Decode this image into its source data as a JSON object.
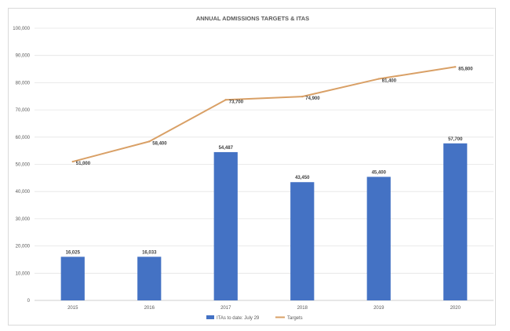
{
  "chart_data": {
    "type": "bar",
    "title": "ANNUAL ADMISSIONS TARGETS & ITAS",
    "categories": [
      "2015",
      "2016",
      "2017",
      "2018",
      "2019",
      "2020"
    ],
    "series": [
      {
        "name": "ITAs to date: July 29",
        "type": "bar",
        "color": "#4472C4",
        "values": [
          16025,
          16033,
          54487,
          43450,
          45400,
          57700
        ],
        "labels": [
          "16,025",
          "16,033",
          "54,487",
          "43,450",
          "45,400",
          "57,700"
        ]
      },
      {
        "name": "Targets",
        "type": "line",
        "color": "#D9A066",
        "values": [
          51000,
          58400,
          73700,
          74900,
          81400,
          85800
        ],
        "labels": [
          "51,000",
          "58,400",
          "73,700",
          "74,900",
          "81,400",
          "85,800"
        ]
      }
    ],
    "ylim": [
      0,
      100000
    ],
    "yticks": [
      0,
      10000,
      20000,
      30000,
      40000,
      50000,
      60000,
      70000,
      80000,
      90000,
      100000
    ],
    "ytick_labels": [
      "0",
      "10,000",
      "20,000",
      "30,000",
      "40,000",
      "50,000",
      "60,000",
      "70,000",
      "80,000",
      "90,000",
      "100,000"
    ],
    "grid": true,
    "legend_position": "bottom"
  }
}
